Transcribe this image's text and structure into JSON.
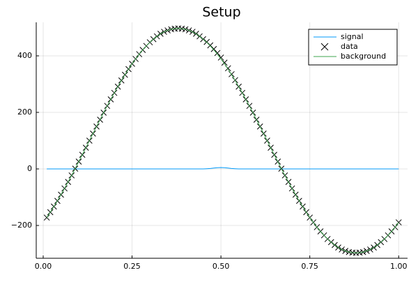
{
  "chart_data": {
    "type": "line",
    "title": "Setup",
    "x": [
      0.01,
      0.02,
      0.03,
      0.04,
      0.05,
      0.06,
      0.07,
      0.08,
      0.09,
      0.1,
      0.11,
      0.12,
      0.13,
      0.14,
      0.15,
      0.16,
      0.17,
      0.18,
      0.19,
      0.2,
      0.21,
      0.22,
      0.23,
      0.24,
      0.25,
      0.26,
      0.27,
      0.28,
      0.29,
      0.3,
      0.31,
      0.32,
      0.33,
      0.34,
      0.35,
      0.36,
      0.37,
      0.38,
      0.39,
      0.4,
      0.41,
      0.42,
      0.43,
      0.44,
      0.45,
      0.46,
      0.47,
      0.48,
      0.49,
      0.5,
      0.51,
      0.52,
      0.53,
      0.54,
      0.55,
      0.56,
      0.57,
      0.58,
      0.59,
      0.6,
      0.61,
      0.62,
      0.63,
      0.64,
      0.65,
      0.66,
      0.67,
      0.68,
      0.69,
      0.7,
      0.71,
      0.72,
      0.73,
      0.74,
      0.75,
      0.76,
      0.77,
      0.78,
      0.79,
      0.8,
      0.81,
      0.82,
      0.83,
      0.84,
      0.85,
      0.86,
      0.87,
      0.88,
      0.89,
      0.9,
      0.91,
      0.92,
      0.93,
      0.94,
      0.95,
      0.96,
      0.97,
      0.98,
      0.99,
      1.0
    ],
    "series": [
      {
        "name": "signal",
        "color": "#009af9",
        "style": "line",
        "values": [
          0,
          0,
          0,
          0,
          0,
          0,
          0,
          0,
          0,
          0,
          0,
          0,
          0,
          0,
          0,
          0,
          0,
          0,
          0,
          0,
          0,
          0,
          0,
          0,
          0,
          0,
          0,
          0,
          0,
          0,
          0,
          0,
          0,
          0,
          0,
          0,
          0,
          0,
          0,
          0,
          0,
          0,
          0,
          0,
          0,
          0.7,
          1.6,
          3,
          4.4,
          5,
          4.4,
          3,
          1.6,
          0.7,
          0,
          0,
          0,
          0,
          0,
          0,
          0,
          0,
          0,
          0,
          0,
          0,
          0,
          0,
          0,
          0,
          0,
          0,
          0,
          0,
          0,
          0,
          0,
          0,
          0,
          0,
          0,
          0,
          0,
          0,
          0,
          0,
          0,
          0,
          0,
          0,
          0,
          0,
          0,
          0,
          0,
          0,
          0,
          0,
          0,
          0
        ]
      },
      {
        "name": "data",
        "color": "#000000",
        "style": "marker",
        "values": [
          -172,
          -153,
          -133,
          -113,
          -91,
          -69,
          -46,
          -23,
          1,
          26,
          50,
          75,
          100,
          125,
          150,
          174,
          199,
          223,
          246,
          269,
          291,
          313,
          333,
          353,
          372,
          389,
          406,
          421,
          435,
          448,
          459,
          469,
          478,
          485,
          490,
          494,
          496,
          497,
          496,
          494,
          490,
          485,
          478,
          469,
          459,
          449,
          437,
          424,
          410,
          394,
          376,
          356,
          335,
          314,
          291,
          269,
          246,
          223,
          199,
          174,
          150,
          125,
          100,
          75,
          50,
          26,
          1,
          -23,
          -46,
          -69,
          -91,
          -113,
          -133,
          -153,
          -172,
          -189,
          -206,
          -221,
          -235,
          -248,
          -259,
          -269,
          -278,
          -285,
          -290,
          -294,
          -296,
          -297,
          -296,
          -294,
          -290,
          -285,
          -278,
          -269,
          -259,
          -248,
          -235,
          -221,
          -206,
          -189
        ]
      },
      {
        "name": "background",
        "color": "#3da44d",
        "style": "line",
        "values": [
          -172,
          -153,
          -133,
          -113,
          -91,
          -69,
          -46,
          -23,
          1,
          26,
          50,
          75,
          100,
          125,
          150,
          174,
          199,
          223,
          246,
          269,
          291,
          313,
          333,
          353,
          372,
          389,
          406,
          421,
          435,
          448,
          459,
          469,
          478,
          485,
          490,
          494,
          496,
          497,
          496,
          494,
          490,
          485,
          478,
          469,
          459,
          448,
          435,
          421,
          406,
          389,
          372,
          353,
          333,
          313,
          291,
          269,
          246,
          223,
          199,
          174,
          150,
          125,
          100,
          75,
          50,
          26,
          1,
          -23,
          -46,
          -69,
          -91,
          -113,
          -133,
          -153,
          -172,
          -189,
          -206,
          -221,
          -235,
          -248,
          -259,
          -269,
          -278,
          -285,
          -290,
          -294,
          -296,
          -297,
          -296,
          -294,
          -290,
          -285,
          -278,
          -269,
          -259,
          -248,
          -235,
          -221,
          -206,
          -189
        ]
      }
    ],
    "xlim": [
      -0.0196,
      1.025
    ],
    "ylim": [
      -316,
      518.5
    ],
    "xticks": [
      {
        "value": 0,
        "label": "0.00"
      },
      {
        "value": 0.25,
        "label": "0.25"
      },
      {
        "value": 0.5,
        "label": "0.50"
      },
      {
        "value": 0.75,
        "label": "0.75"
      },
      {
        "value": 1,
        "label": "1.00"
      }
    ],
    "yticks": [
      {
        "value": -200,
        "label": "−200"
      },
      0,
      200,
      400
    ],
    "grid": true,
    "legend": "top-right"
  }
}
